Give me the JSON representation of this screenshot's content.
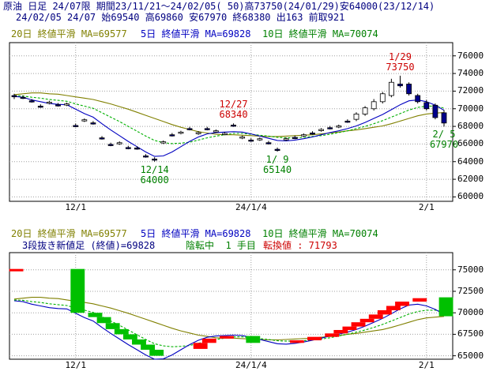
{
  "header": {
    "title": "原油 日足 24/07限 期間23/11/21～24/02/05( 50)高73750(24/01/29)安64000(23/12/14)",
    "ohlc": "24/02/05 24/07 始69540 高69860 安67970 終68380 出163 前取921"
  },
  "upper_panel": {
    "legend": [
      {
        "label": "20日 終値平滑 MA=69577",
        "color": "#808000"
      },
      {
        "label": "5日 終値平滑 MA=69828",
        "color": "#0000c0"
      },
      {
        "label": "10日 終値平滑 MA=70074",
        "color": "#008000"
      }
    ]
  },
  "lower_panel": {
    "legend": [
      {
        "label": "20日 終値平滑 MA=69577",
        "color": "#808000"
      },
      {
        "label": "5日 終値平滑 MA=69828",
        "color": "#0000c0"
      },
      {
        "label": "10日 終値平滑 MA=70074",
        "color": "#008000"
      }
    ],
    "info": "3段抜き新値足 (終値)=69828",
    "state": "陰転中  1 手目",
    "switch_value": "転換値 : 71793"
  },
  "colors": {
    "up_candle": "#ffffff",
    "down_candle": "#00008b",
    "brick_up": "#ff0000",
    "brick_down": "#00c000",
    "ma20": "#808000",
    "ma5": "#0000c0",
    "ma10": "#00b000",
    "grid": "#a0a0a0"
  },
  "chart_data": [
    {
      "type": "candlestick",
      "title": "原油 日足 24/07限",
      "x_tick_labels": [
        "12/1",
        "24/1/4",
        "2/1"
      ],
      "y_ticks": [
        60000,
        62000,
        64000,
        66000,
        68000,
        70000,
        72000,
        74000,
        76000
      ],
      "ylim": [
        59500,
        77500
      ],
      "grid": true,
      "annotations": [
        {
          "date": "2024/01/29",
          "text": "1/29\n73750",
          "kind": "high"
        },
        {
          "date": "2023/12/27",
          "text": "12/27\n68340",
          "kind": "high"
        },
        {
          "date": "2023/12/14",
          "text": "12/14\n64000",
          "kind": "low"
        },
        {
          "date": "2024/01/09",
          "text": "1/ 9\n65140",
          "kind": "low"
        },
        {
          "date": "2024/02/05",
          "text": "2/ 5\n67970",
          "kind": "low"
        }
      ],
      "candles": [
        {
          "date": "2023/11/21",
          "o": 71500,
          "h": 71700,
          "l": 71100,
          "c": 71350
        },
        {
          "date": "2023/11/22",
          "o": 71300,
          "h": 71500,
          "l": 71100,
          "c": 71250
        },
        {
          "date": "2023/11/24",
          "o": 70900,
          "h": 71100,
          "l": 70700,
          "c": 70850
        },
        {
          "date": "2023/11/27",
          "o": 70300,
          "h": 70500,
          "l": 70100,
          "c": 70250
        },
        {
          "date": "2023/11/28",
          "o": 70700,
          "h": 70900,
          "l": 70500,
          "c": 70750
        },
        {
          "date": "2023/11/29",
          "o": 70450,
          "h": 70650,
          "l": 70250,
          "c": 70400
        },
        {
          "date": "2023/11/30",
          "o": 70500,
          "h": 70700,
          "l": 70300,
          "c": 70550
        },
        {
          "date": "2023/12/01",
          "o": 68100,
          "h": 68300,
          "l": 67900,
          "c": 68000
        },
        {
          "date": "2023/12/04",
          "o": 68700,
          "h": 68900,
          "l": 68500,
          "c": 68750
        },
        {
          "date": "2023/12/05",
          "o": 68400,
          "h": 68600,
          "l": 68200,
          "c": 68350
        },
        {
          "date": "2023/12/06",
          "o": 66700,
          "h": 66900,
          "l": 66500,
          "c": 66650
        },
        {
          "date": "2023/12/07",
          "o": 65950,
          "h": 66150,
          "l": 65750,
          "c": 65900
        },
        {
          "date": "2023/12/08",
          "o": 66100,
          "h": 66300,
          "l": 65900,
          "c": 66150
        },
        {
          "date": "2023/12/11",
          "o": 65600,
          "h": 65800,
          "l": 65400,
          "c": 65550
        },
        {
          "date": "2023/12/12",
          "o": 65550,
          "h": 65750,
          "l": 65350,
          "c": 65500
        },
        {
          "date": "2023/12/13",
          "o": 64650,
          "h": 64850,
          "l": 64450,
          "c": 64600
        },
        {
          "date": "2023/12/14",
          "o": 64300,
          "h": 64500,
          "l": 64000,
          "c": 64250
        },
        {
          "date": "2023/12/15",
          "o": 66200,
          "h": 66400,
          "l": 66000,
          "c": 66250
        },
        {
          "date": "2023/12/18",
          "o": 67050,
          "h": 67250,
          "l": 66850,
          "c": 67000
        },
        {
          "date": "2023/12/19",
          "o": 67300,
          "h": 67500,
          "l": 67100,
          "c": 67350
        },
        {
          "date": "2023/12/20",
          "o": 67750,
          "h": 67950,
          "l": 67550,
          "c": 67700
        },
        {
          "date": "2023/12/21",
          "o": 67250,
          "h": 67450,
          "l": 67050,
          "c": 67300
        },
        {
          "date": "2023/12/22",
          "o": 67750,
          "h": 67950,
          "l": 67550,
          "c": 67700
        },
        {
          "date": "2023/12/25",
          "o": 67450,
          "h": 67650,
          "l": 67250,
          "c": 67500
        },
        {
          "date": "2023/12/26",
          "o": 67150,
          "h": 67350,
          "l": 67000,
          "c": 67200
        },
        {
          "date": "2023/12/27",
          "o": 68150,
          "h": 68340,
          "l": 67950,
          "c": 68100
        },
        {
          "date": "2023/12/28",
          "o": 66750,
          "h": 66950,
          "l": 66550,
          "c": 66800
        },
        {
          "date": "2024/01/04",
          "o": 66450,
          "h": 66650,
          "l": 66250,
          "c": 66400
        },
        {
          "date": "2024/01/05",
          "o": 66550,
          "h": 66750,
          "l": 66350,
          "c": 66600
        },
        {
          "date": "2024/01/08",
          "o": 66150,
          "h": 66350,
          "l": 65950,
          "c": 66100
        },
        {
          "date": "2024/01/09",
          "o": 65400,
          "h": 65600,
          "l": 65140,
          "c": 65350
        },
        {
          "date": "2024/01/10",
          "o": 66550,
          "h": 66750,
          "l": 66350,
          "c": 66600
        },
        {
          "date": "2024/01/11",
          "o": 66750,
          "h": 66950,
          "l": 66550,
          "c": 66700
        },
        {
          "date": "2024/01/12",
          "o": 67000,
          "h": 67200,
          "l": 66800,
          "c": 67050
        },
        {
          "date": "2024/01/15",
          "o": 67250,
          "h": 67450,
          "l": 67050,
          "c": 67200
        },
        {
          "date": "2024/01/16",
          "o": 67600,
          "h": 67800,
          "l": 67400,
          "c": 67650
        },
        {
          "date": "2024/01/17",
          "o": 67850,
          "h": 68050,
          "l": 67650,
          "c": 67800
        },
        {
          "date": "2024/01/18",
          "o": 68000,
          "h": 68200,
          "l": 67800,
          "c": 68050
        },
        {
          "date": "2024/01/19",
          "o": 68600,
          "h": 68800,
          "l": 68400,
          "c": 68550
        },
        {
          "date": "2024/01/22",
          "o": 68800,
          "h": 69600,
          "l": 68600,
          "c": 69400
        },
        {
          "date": "2024/01/23",
          "o": 69400,
          "h": 70300,
          "l": 69200,
          "c": 70100
        },
        {
          "date": "2024/01/24",
          "o": 70000,
          "h": 71100,
          "l": 69800,
          "c": 70800
        },
        {
          "date": "2024/01/25",
          "o": 70800,
          "h": 71900,
          "l": 70600,
          "c": 71700
        },
        {
          "date": "2024/01/26",
          "o": 71500,
          "h": 73400,
          "l": 71300,
          "c": 73000
        },
        {
          "date": "2024/01/29",
          "o": 72800,
          "h": 73750,
          "l": 72400,
          "c": 72600
        },
        {
          "date": "2024/01/30",
          "o": 72800,
          "h": 73000,
          "l": 71500,
          "c": 71700
        },
        {
          "date": "2024/01/31",
          "o": 71500,
          "h": 71700,
          "l": 70600,
          "c": 70800
        },
        {
          "date": "2024/02/01",
          "o": 70700,
          "h": 71000,
          "l": 69800,
          "c": 70000
        },
        {
          "date": "2024/02/02",
          "o": 70400,
          "h": 70600,
          "l": 68800,
          "c": 69000
        },
        {
          "date": "2024/02/05",
          "o": 69540,
          "h": 69860,
          "l": 67970,
          "c": 68380
        }
      ],
      "series": [
        {
          "name": "20日 終値平滑",
          "color": "#808000",
          "values": [
            71600,
            71700,
            71800,
            71800,
            71700,
            71650,
            71500,
            71350,
            71200,
            71050,
            70800,
            70550,
            70250,
            69950,
            69600,
            69250,
            68900,
            68550,
            68200,
            67900,
            67650,
            67400,
            67250,
            67100,
            67050,
            67050,
            67000,
            66950,
            66900,
            66850,
            66850,
            66900,
            66950,
            67000,
            67050,
            67150,
            67250,
            67350,
            67500,
            67600,
            67750,
            67900,
            68050,
            68300,
            68600,
            68900,
            69200,
            69400,
            69500,
            69577
          ]
        },
        {
          "name": "5日 終値平滑",
          "color": "#0000c0",
          "values": [
            71400,
            71300,
            71000,
            70800,
            70600,
            70500,
            70450,
            69950,
            69450,
            69050,
            68300,
            67600,
            66950,
            66300,
            65700,
            65100,
            64600,
            64650,
            65100,
            65700,
            66300,
            66800,
            67150,
            67300,
            67350,
            67400,
            67350,
            67150,
            66900,
            66650,
            66400,
            66350,
            66450,
            66600,
            66800,
            67050,
            67300,
            67500,
            67750,
            68050,
            68450,
            68900,
            69350,
            69900,
            70450,
            70900,
            71000,
            70800,
            70400,
            69828
          ]
        },
        {
          "name": "10日 終値平滑",
          "color": "#00b000",
          "values": [
            71500,
            71450,
            71300,
            71200,
            71050,
            70950,
            70850,
            70550,
            70300,
            70050,
            69550,
            69050,
            68550,
            68000,
            67450,
            66900,
            66400,
            66150,
            66050,
            66100,
            66200,
            66450,
            66700,
            66900,
            67050,
            67200,
            67200,
            67100,
            67000,
            66900,
            66750,
            66700,
            66700,
            66750,
            66850,
            66950,
            67100,
            67300,
            67500,
            67750,
            68000,
            68300,
            68650,
            69050,
            69450,
            69850,
            70150,
            70300,
            70300,
            70074
          ]
        }
      ]
    },
    {
      "type": "bar",
      "subtype": "3段抜き新値足",
      "x_tick_labels": [
        "12/1",
        "24/1/4",
        "2/1"
      ],
      "y_ticks": [
        65000,
        67500,
        70000,
        72500,
        75000
      ],
      "ylim": [
        64600,
        77000
      ],
      "grid": true,
      "bricks": [
        {
          "idx": 0,
          "open": 74900,
          "close": 75100,
          "dir": "up"
        },
        {
          "idx": 7,
          "open": 75100,
          "close": 70000,
          "dir": "down"
        },
        {
          "idx": 9,
          "open": 70000,
          "close": 69500,
          "dir": "down"
        },
        {
          "idx": 10,
          "open": 69500,
          "close": 68800,
          "dir": "down"
        },
        {
          "idx": 11,
          "open": 68800,
          "close": 68100,
          "dir": "down"
        },
        {
          "idx": 12,
          "open": 68100,
          "close": 67500,
          "dir": "down"
        },
        {
          "idx": 13,
          "open": 67500,
          "close": 66900,
          "dir": "down"
        },
        {
          "idx": 14,
          "open": 66900,
          "close": 66300,
          "dir": "down"
        },
        {
          "idx": 15,
          "open": 66300,
          "close": 65700,
          "dir": "down"
        },
        {
          "idx": 16,
          "open": 65700,
          "close": 65000,
          "dir": "down"
        },
        {
          "idx": 21,
          "open": 65800,
          "close": 66500,
          "dir": "up"
        },
        {
          "idx": 22,
          "open": 66500,
          "close": 67000,
          "dir": "up"
        },
        {
          "idx": 24,
          "open": 67000,
          "close": 67300,
          "dir": "up"
        },
        {
          "idx": 27,
          "open": 67300,
          "close": 66500,
          "dir": "down"
        },
        {
          "idx": 32,
          "open": 66500,
          "close": 66800,
          "dir": "up"
        },
        {
          "idx": 34,
          "open": 66800,
          "close": 67200,
          "dir": "up"
        },
        {
          "idx": 36,
          "open": 67200,
          "close": 67600,
          "dir": "up"
        },
        {
          "idx": 37,
          "open": 67600,
          "close": 68000,
          "dir": "up"
        },
        {
          "idx": 38,
          "open": 68000,
          "close": 68400,
          "dir": "up"
        },
        {
          "idx": 39,
          "open": 68400,
          "close": 68900,
          "dir": "up"
        },
        {
          "idx": 40,
          "open": 68900,
          "close": 69300,
          "dir": "up"
        },
        {
          "idx": 41,
          "open": 69300,
          "close": 69800,
          "dir": "up"
        },
        {
          "idx": 42,
          "open": 69800,
          "close": 70300,
          "dir": "up"
        },
        {
          "idx": 43,
          "open": 70300,
          "close": 70800,
          "dir": "up"
        },
        {
          "idx": 44,
          "open": 70800,
          "close": 71300,
          "dir": "up"
        },
        {
          "idx": 46,
          "open": 71300,
          "close": 71700,
          "dir": "up"
        },
        {
          "idx": 49,
          "open": 71800,
          "close": 69600,
          "dir": "down"
        }
      ],
      "series": [
        {
          "name": "20日 終値平滑",
          "color": "#808000",
          "values": [
            71600,
            71700,
            71800,
            71800,
            71700,
            71650,
            71500,
            71350,
            71200,
            71050,
            70800,
            70550,
            70250,
            69950,
            69600,
            69250,
            68900,
            68550,
            68200,
            67900,
            67650,
            67400,
            67250,
            67100,
            67050,
            67050,
            67000,
            66950,
            66900,
            66850,
            66850,
            66900,
            66950,
            67000,
            67050,
            67150,
            67250,
            67350,
            67500,
            67600,
            67750,
            67900,
            68050,
            68300,
            68600,
            68900,
            69200,
            69400,
            69500,
            69577
          ]
        },
        {
          "name": "5日 終値平滑",
          "color": "#0000c0",
          "values": [
            71400,
            71300,
            71000,
            70800,
            70600,
            70500,
            70450,
            69950,
            69450,
            69050,
            68300,
            67600,
            66950,
            66300,
            65700,
            65100,
            64600,
            64650,
            65100,
            65700,
            66300,
            66800,
            67150,
            67300,
            67350,
            67400,
            67350,
            67150,
            66900,
            66650,
            66400,
            66350,
            66450,
            66600,
            66800,
            67050,
            67300,
            67500,
            67750,
            68050,
            68450,
            68900,
            69350,
            69900,
            70450,
            70900,
            71000,
            70800,
            70400,
            69828
          ]
        },
        {
          "name": "10日 終値平滑",
          "color": "#00b000",
          "values": [
            71500,
            71450,
            71300,
            71200,
            71050,
            70950,
            70850,
            70550,
            70300,
            70050,
            69550,
            69050,
            68550,
            68000,
            67450,
            66900,
            66400,
            66150,
            66050,
            66100,
            66200,
            66450,
            66700,
            66900,
            67050,
            67200,
            67200,
            67100,
            67000,
            66900,
            66750,
            66700,
            66700,
            66750,
            66850,
            66950,
            67100,
            67300,
            67500,
            67750,
            68000,
            68300,
            68650,
            69050,
            69450,
            69850,
            70150,
            70300,
            70300,
            70074
          ]
        }
      ]
    }
  ]
}
